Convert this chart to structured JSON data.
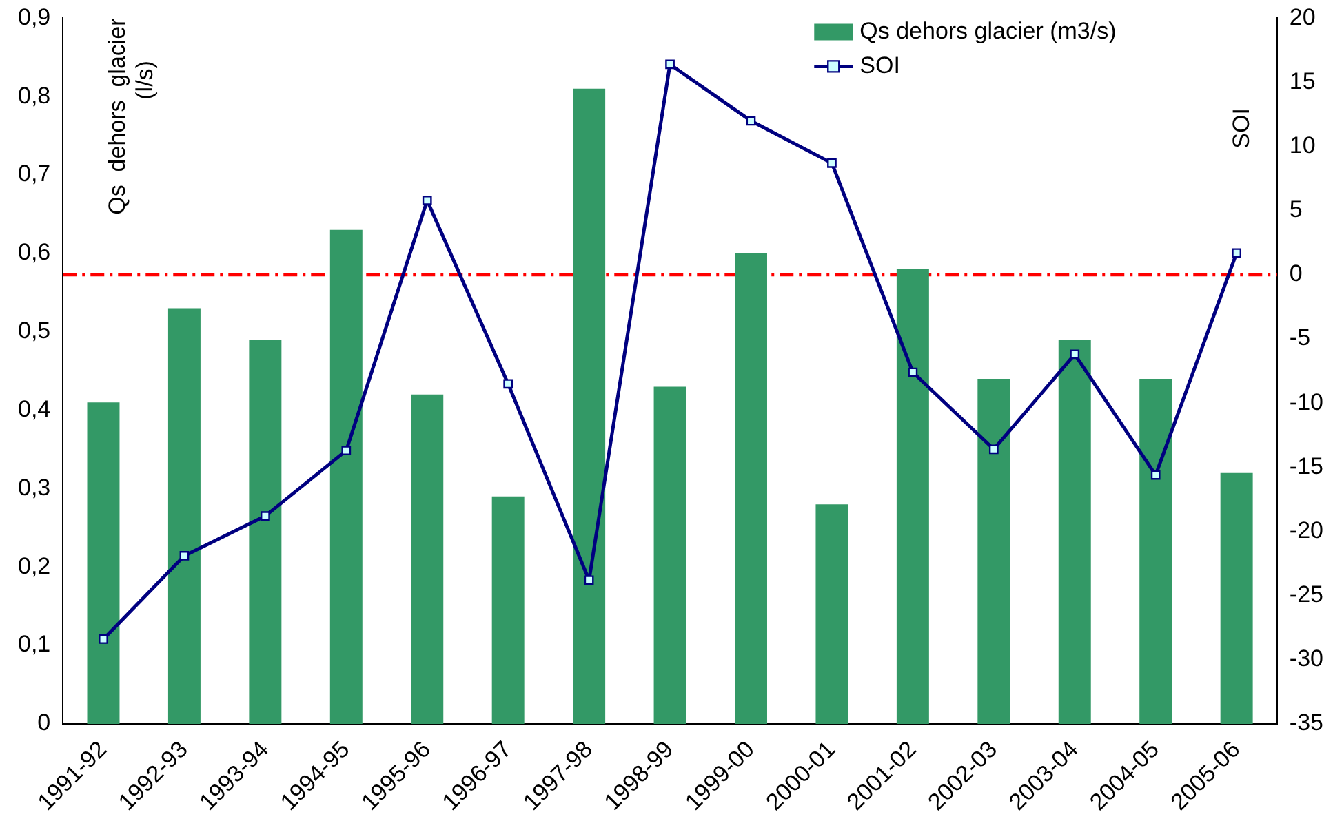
{
  "chart_data": {
    "type": "bar",
    "ylabel": "Qs  dehors  glacier\n(l/s)",
    "y2label": "SOI",
    "categories": [
      "1991-92",
      "1992-93",
      "1993-94",
      "1994-95",
      "1995-96",
      "1996-97",
      "1997-98",
      "1998-99",
      "1999-00",
      "2000-01",
      "2001-02",
      "2002-03",
      "2003-04",
      "2004-05",
      "2005-06"
    ],
    "series": [
      {
        "name": "Qs dehors glacier (m3/s)",
        "color": "#339966",
        "values": [
          0.41,
          0.53,
          0.49,
          0.63,
          0.42,
          0.29,
          0.81,
          0.43,
          0.6,
          0.28,
          0.58,
          0.44,
          0.49,
          0.44,
          0.32
        ]
      },
      {
        "name": "SOI",
        "type": "line",
        "axis": "y2",
        "color": "#000080",
        "values": [
          -28.4,
          -21.9,
          -18.8,
          -13.7,
          5.8,
          -8.5,
          -23.8,
          16.4,
          12,
          8.7,
          -7.6,
          -13.6,
          -6.2,
          -15.6,
          1.7
        ]
      }
    ],
    "ylim": [
      0,
      0.9
    ],
    "yticks": [
      0,
      {
        "value": 0.1,
        "label": "0,1"
      },
      {
        "value": 0.2,
        "label": "0,2"
      },
      {
        "value": 0.3,
        "label": "0,3"
      },
      {
        "value": 0.4,
        "label": "0,4"
      },
      {
        "value": 0.5,
        "label": "0,5"
      },
      {
        "value": 0.6,
        "label": "0,6"
      },
      {
        "value": 0.7,
        "label": "0,7"
      },
      {
        "value": 0.8,
        "label": "0,8"
      },
      {
        "value": 0.9,
        "label": "0,9"
      }
    ],
    "y2lim": [
      -35,
      20
    ],
    "y2ticks": [
      -35,
      -30,
      -25,
      -20,
      -15,
      -10,
      -5,
      0,
      5,
      10,
      15,
      20
    ],
    "ref_lines": [
      {
        "axis": "y2",
        "value": 0,
        "color": "#ff0000",
        "line_style": "dashdot"
      }
    ],
    "legend": "top right",
    "marker": "square",
    "line_style": "solid",
    "grid": false
  }
}
